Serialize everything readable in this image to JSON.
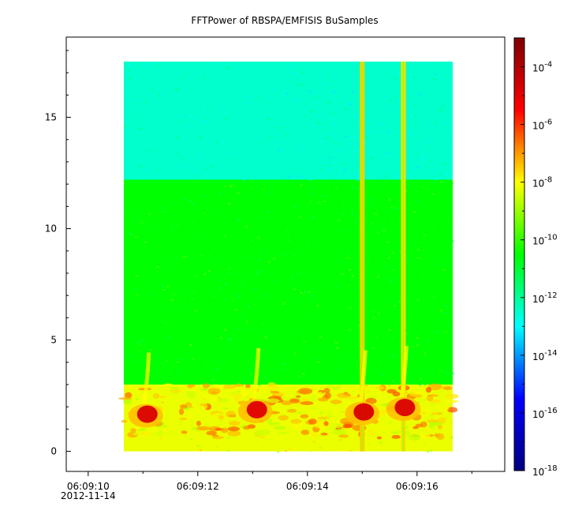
{
  "chart_data": {
    "type": "heatmap",
    "title": "FFTPower of RBSPA/EMFISIS  BuSamples",
    "xlabel": "",
    "ylabel": "",
    "x_ticks": [
      {
        "label": "06:09:10",
        "sublabel": "2012-11-14",
        "value": 10
      },
      {
        "label": "06:09:12",
        "value": 12
      },
      {
        "label": "06:09:14",
        "value": 14
      },
      {
        "label": "06:09:16",
        "value": 16
      }
    ],
    "x_range": [
      9.6,
      17.6
    ],
    "y_ticks": [
      0,
      5,
      10,
      15
    ],
    "ylim": [
      -0.9,
      18.6
    ],
    "colorbar": {
      "scale": "log",
      "range": [
        1e-18,
        0.001
      ],
      "tick_labels": [
        "10-4",
        "10-6",
        "10-8",
        "10-10",
        "10-12",
        "10-14",
        "10-16",
        "10-18"
      ],
      "tick_values": [
        -4,
        -6,
        -8,
        -10,
        -12,
        -14,
        -16,
        -18
      ],
      "colormap": [
        "#00007f",
        "#0000ff",
        "#00ffff",
        "#00ff00",
        "#ffff00",
        "#ff0000",
        "#7f0000"
      ]
    },
    "data_extent": {
      "x": [
        10.65,
        16.65
      ],
      "y": [
        0,
        17.5
      ]
    },
    "levels": {
      "upper_band_y": [
        12.2,
        17.5
      ],
      "upper_band_log10_power": -12.5,
      "middle_band_y": [
        3,
        12.2
      ],
      "middle_band_log10_power": -10.5,
      "lower_band_y": [
        0,
        3
      ],
      "lower_band_log10_power": -8.2,
      "burst_core_log10_power": -4.8,
      "spike_log10_power": -7.5
    },
    "bursts": [
      {
        "t": 11.05,
        "f": 1.6,
        "log10_power": -4.8
      },
      {
        "t": 13.05,
        "f": 1.8,
        "log10_power": -4.9
      },
      {
        "t": 15.0,
        "f": 1.7,
        "log10_power": -4.7
      },
      {
        "t": 15.75,
        "f": 1.9,
        "log10_power": -4.8
      }
    ],
    "spikes": [
      {
        "t": 15.0,
        "log10_power": -7.5
      },
      {
        "t": 15.75,
        "log10_power": -7.7
      }
    ]
  }
}
